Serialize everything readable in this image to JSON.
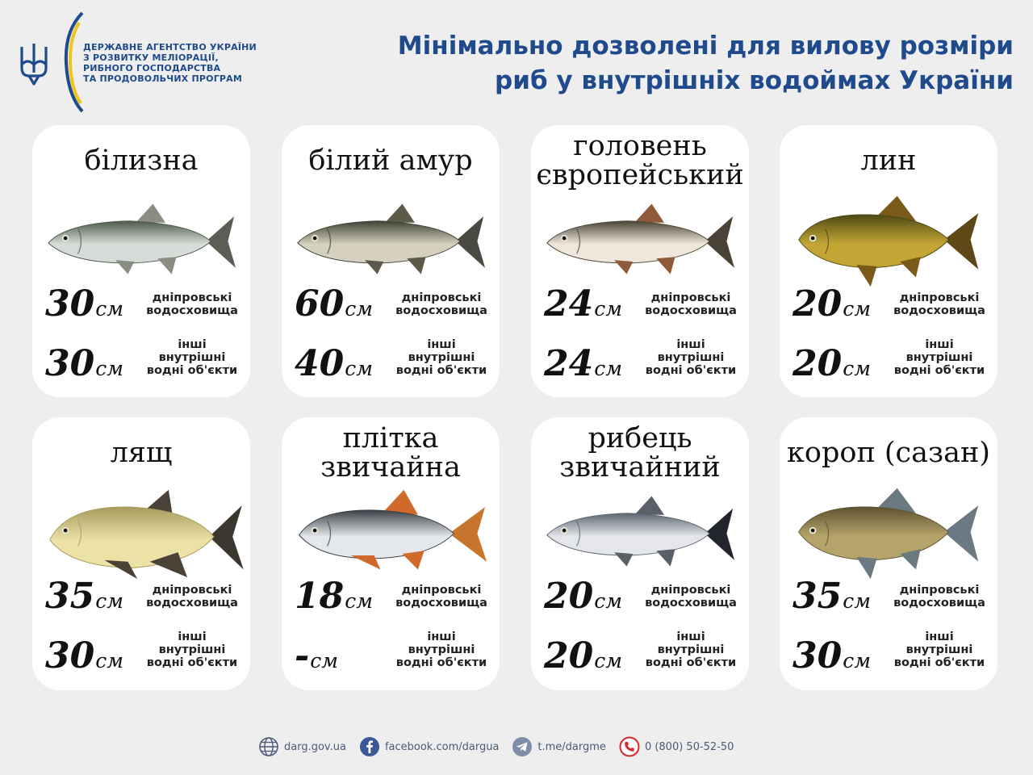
{
  "agency": {
    "lines": [
      "ДЕРЖАВНЕ АГЕНТСТВО УКРАЇНИ",
      "З РОЗВИТКУ МЕЛІОРАЦІЇ,",
      "РИБНОГО ГОСПОДАРСТВА",
      "ТА ПРОДОВОЛЬЧИХ ПРОГРАМ"
    ]
  },
  "title": {
    "line1": "Мінімально дозволені для вилову розміри",
    "line2": "риб у внутрішніх водоймах України"
  },
  "unit": "см",
  "labels": {
    "dnipro_1": "дніпровські",
    "dnipro_2": "водосховища",
    "other_1": "інші",
    "other_2": "внутрішні",
    "other_3": "водні об'єкти"
  },
  "fish": [
    {
      "name_1": "білизна",
      "name_2": "",
      "dnipro": "30",
      "other": "30",
      "icon": "asp-fish"
    },
    {
      "name_1": "білий амур",
      "name_2": "",
      "dnipro": "60",
      "other": "40",
      "icon": "grass-carp-fish"
    },
    {
      "name_1": "головень",
      "name_2": "європейський",
      "dnipro": "24",
      "other": "24",
      "icon": "chub-fish"
    },
    {
      "name_1": "лин",
      "name_2": "",
      "dnipro": "20",
      "other": "20",
      "icon": "tench-fish"
    },
    {
      "name_1": "лящ",
      "name_2": "",
      "dnipro": "35",
      "other": "30",
      "icon": "bream-fish"
    },
    {
      "name_1": "плітка",
      "name_2": "звичайна",
      "dnipro": "18",
      "other": "-",
      "icon": "roach-fish"
    },
    {
      "name_1": "рибець",
      "name_2": "звичайний",
      "dnipro": "20",
      "other": "20",
      "icon": "vimba-fish"
    },
    {
      "name_1": "короп (сазан)",
      "name_2": "",
      "dnipro": "35",
      "other": "30",
      "icon": "carp-fish"
    }
  ],
  "footer": {
    "website": "darg.gov.ua",
    "facebook": "facebook.com/dargua",
    "telegram": "t.me/dargme",
    "phone": "0 (800) 50-52-50"
  },
  "colors": {
    "brand_blue": "#1f4a8c",
    "ukraine_yellow": "#f2c318",
    "background": "#eeeeee"
  }
}
